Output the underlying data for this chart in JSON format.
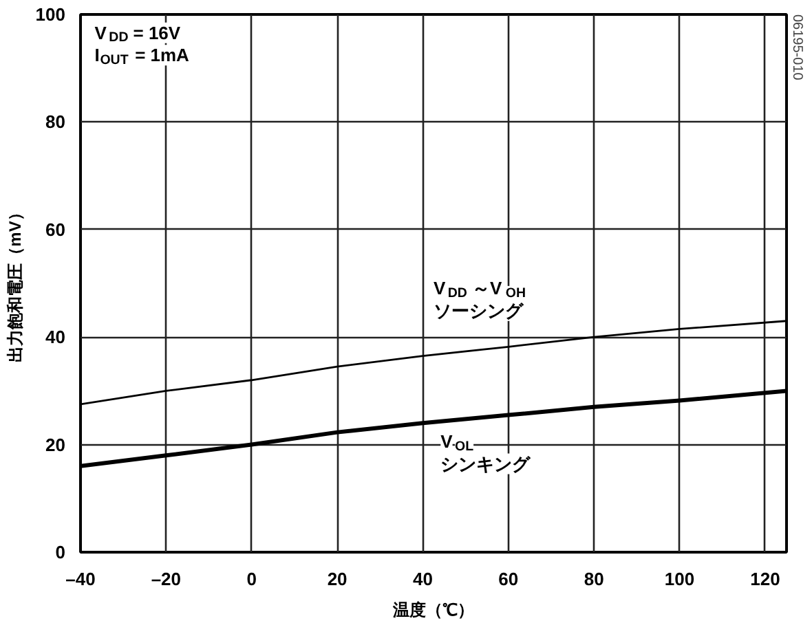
{
  "chart_data": {
    "type": "line",
    "xlabel": "温度（℃）",
    "ylabel": "出力飽和電圧（mV）",
    "x": [
      -40,
      -20,
      0,
      20,
      40,
      60,
      80,
      100,
      125
    ],
    "series": [
      {
        "color": "#000000",
        "values": [
          27.5,
          30,
          32,
          34.5,
          36.5,
          38.2,
          40,
          41.5,
          43
        ]
      },
      {
        "color": "#000000",
        "values": [
          16,
          18,
          20,
          22.3,
          24,
          25.5,
          27,
          28.2,
          30
        ]
      }
    ],
    "xlim": [
      -40,
      125
    ],
    "ylim": [
      0,
      100
    ],
    "xticks": [
      {
        "value": -40,
        "label": "–40"
      },
      {
        "value": -20,
        "label": "–20"
      },
      0,
      20,
      40,
      60,
      80,
      100,
      120
    ],
    "yticks": [
      0,
      20,
      40,
      60,
      80,
      100
    ],
    "grid": true,
    "marker": "none",
    "line_style": "solid",
    "annotations": [
      "V$_{DD}$ = 16V\nI$_{OUT}$ = 1mA",
      "V$_{DD}$～V$_{OH}$\nソーシング",
      "V$_{OL}$\nシンキング",
      "06195-010"
    ]
  }
}
